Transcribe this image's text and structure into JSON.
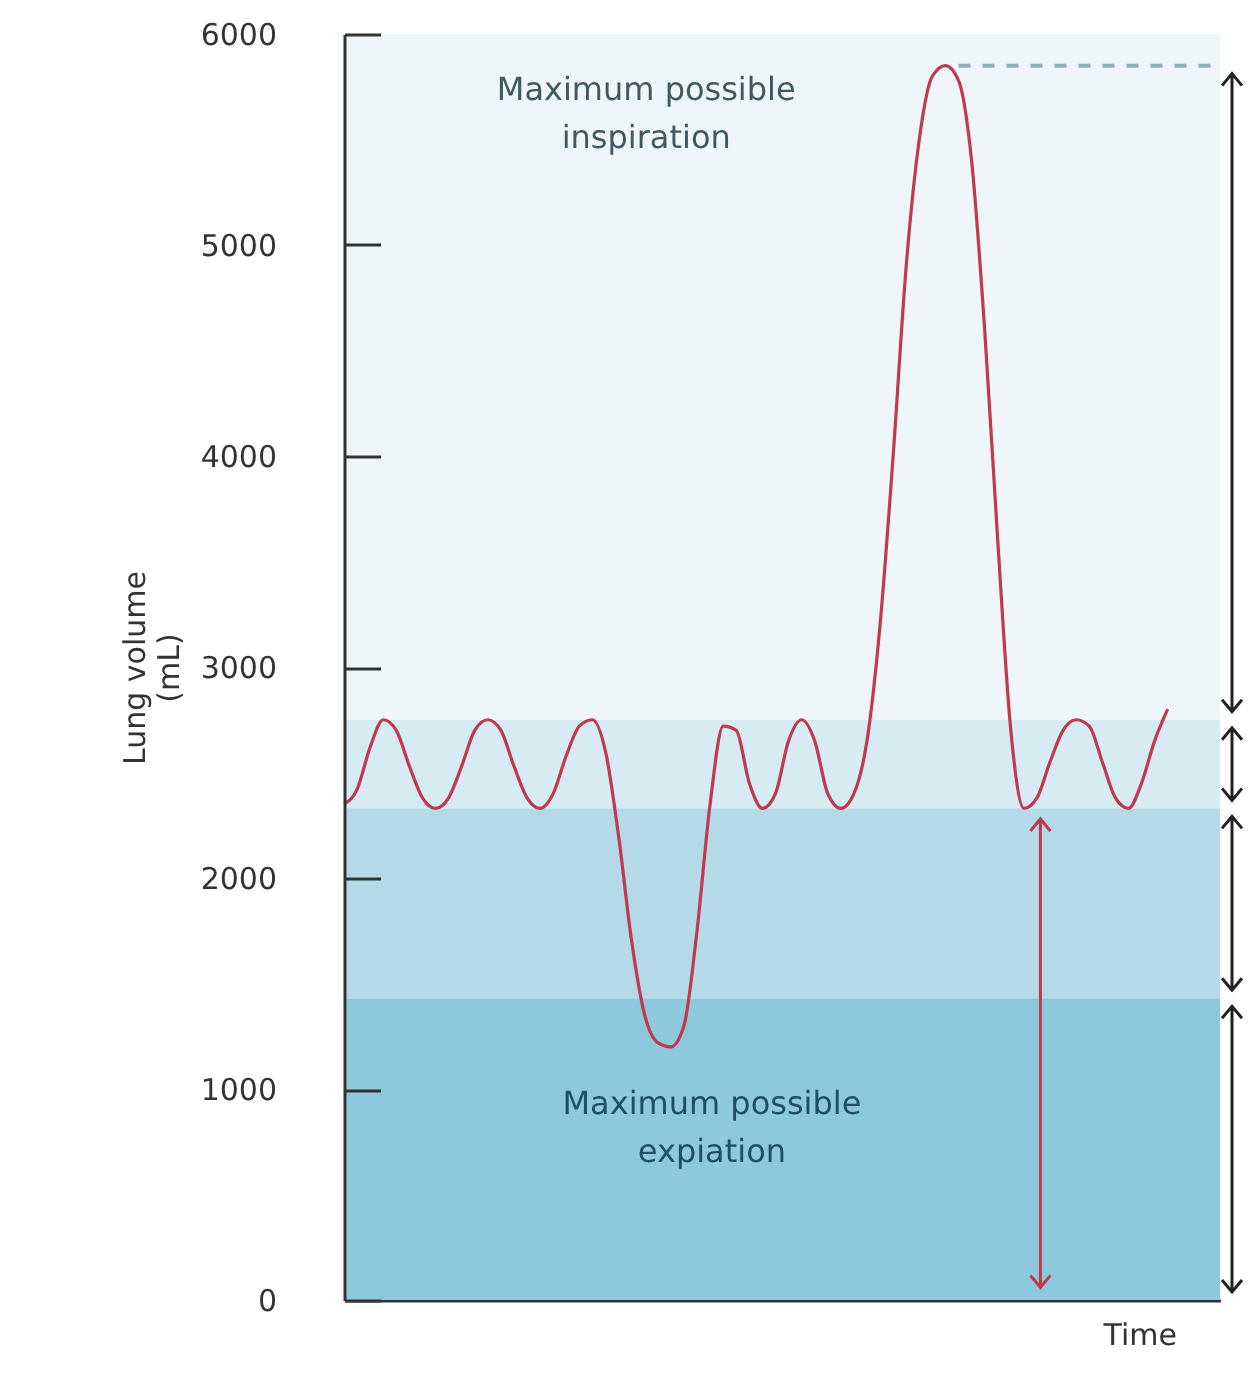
{
  "chart_data": {
    "type": "line",
    "ylabel": "Lung volume\n(mL)",
    "xlabel": "Time",
    "categories": [
      null,
      null,
      null,
      null,
      null,
      null,
      null,
      null,
      null,
      null,
      null,
      null,
      null,
      null,
      null,
      null,
      null,
      null,
      null,
      null,
      null,
      null,
      null,
      null,
      null,
      null,
      null,
      null,
      null,
      null,
      null,
      null,
      null,
      null,
      null,
      null,
      null,
      null,
      null,
      null,
      null,
      null,
      null,
      null,
      null,
      null,
      null,
      null,
      null,
      null,
      null,
      null,
      null,
      null,
      null,
      null,
      null,
      null,
      null,
      null,
      null,
      null,
      null,
      null,
      null,
      null,
      null,
      null
    ],
    "series": [
      {
        "color": "#c0394f",
        "values": [
          2350,
          2420,
          2620,
          2750,
          2700,
          2530,
          2380,
          2330,
          2380,
          2530,
          2700,
          2750,
          2700,
          2530,
          2380,
          2330,
          2400,
          2580,
          2720,
          2750,
          2600,
          2200,
          1700,
          1350,
          1220,
          1200,
          1300,
          1750,
          2350,
          2720,
          2700,
          2450,
          2330,
          2400,
          2650,
          2750,
          2650,
          2400,
          2330,
          2400,
          2650,
          3200,
          4000,
          4900,
          5500,
          5800,
          5850,
          5780,
          5400,
          4600,
          3600,
          2700,
          2330,
          2380,
          2550,
          2700,
          2750,
          2720,
          2550,
          2380,
          2330,
          2450,
          2650,
          2800,
          null,
          null,
          null,
          null
        ]
      }
    ],
    "ylim": [
      0,
      6000
    ],
    "yticks": [
      0,
      1000,
      2000,
      3000,
      4000,
      5000,
      6000
    ],
    "marker": "none",
    "line_style": "solid",
    "bands": [
      {
        "axis": "y",
        "from": 0,
        "to": 1430,
        "color": "#8ec8dc"
      },
      {
        "axis": "y",
        "from": 1430,
        "to": 2330,
        "color": "#b5dae7"
      },
      {
        "axis": "y",
        "from": 2330,
        "to": 2750,
        "color": "#d6ebf2"
      },
      {
        "axis": "y",
        "from": 2750,
        "to": 6000,
        "color": "#eef6fa"
      }
    ],
    "ref_lines": [
      {
        "axis": "y",
        "value": 5850,
        "color": "#8fb0b8",
        "line_style": "dashed"
      }
    ],
    "annotations": [
      "Maximum possible inspiration",
      "Maximum possible expiation"
    ]
  }
}
